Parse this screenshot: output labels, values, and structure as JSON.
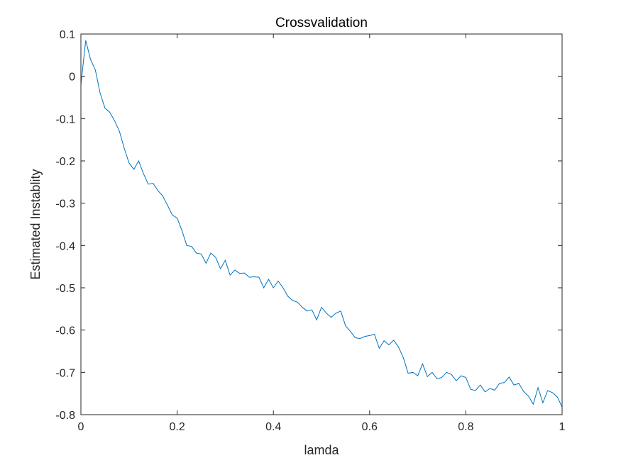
{
  "chart_data": {
    "type": "line",
    "title": "Crossvalidation",
    "xlabel": "lamda",
    "ylabel": "Estimated Instablity",
    "xlim": [
      0,
      1
    ],
    "ylim": [
      -0.8,
      0.1
    ],
    "grid": false,
    "box": true,
    "xticks": [
      0,
      0.2,
      0.4,
      0.6,
      0.8,
      1
    ],
    "xtick_labels": [
      "0",
      "0.2",
      "0.4",
      "0.6",
      "0.8",
      "1"
    ],
    "yticks": [
      0.1,
      0,
      -0.1,
      -0.2,
      -0.3,
      -0.4,
      -0.5,
      -0.6,
      -0.7,
      -0.8
    ],
    "ytick_labels": [
      "0.1",
      "0",
      "-0.1",
      "-0.2",
      "-0.3",
      "-0.4",
      "-0.5",
      "-0.6",
      "-0.7",
      "-0.8"
    ],
    "series": [
      {
        "color": "#0072BD",
        "x": [
          0,
          0.01,
          0.02,
          0.03,
          0.04,
          0.05,
          0.06,
          0.07,
          0.08,
          0.09,
          0.1,
          0.11,
          0.12,
          0.13,
          0.14,
          0.15,
          0.16,
          0.17,
          0.18,
          0.19,
          0.2,
          0.21,
          0.22,
          0.23,
          0.24,
          0.25,
          0.26,
          0.27,
          0.28,
          0.29,
          0.3,
          0.31,
          0.32,
          0.33,
          0.34,
          0.35,
          0.36,
          0.37,
          0.38,
          0.39,
          0.4,
          0.41,
          0.42,
          0.43,
          0.44,
          0.45,
          0.46,
          0.47,
          0.48,
          0.49,
          0.5,
          0.51,
          0.52,
          0.53,
          0.54,
          0.55,
          0.56,
          0.57,
          0.58,
          0.59,
          0.6,
          0.61,
          0.62,
          0.63,
          0.64,
          0.65,
          0.66,
          0.67,
          0.68,
          0.69,
          0.7,
          0.71,
          0.72,
          0.73,
          0.74,
          0.75,
          0.76,
          0.77,
          0.78,
          0.79,
          0.8,
          0.81,
          0.82,
          0.83,
          0.84,
          0.85,
          0.86,
          0.87,
          0.88,
          0.89,
          0.9,
          0.91,
          0.92,
          0.93,
          0.94,
          0.95,
          0.96,
          0.97,
          0.98,
          0.99,
          1
        ],
        "y": [
          -0.02,
          0.085,
          0.04,
          0.015,
          -0.04,
          -0.075,
          -0.085,
          -0.105,
          -0.13,
          -0.17,
          -0.205,
          -0.22,
          -0.2,
          -0.23,
          -0.255,
          -0.253,
          -0.27,
          -0.283,
          -0.305,
          -0.328,
          -0.335,
          -0.365,
          -0.4,
          -0.402,
          -0.418,
          -0.42,
          -0.442,
          -0.418,
          -0.428,
          -0.455,
          -0.435,
          -0.47,
          -0.458,
          -0.466,
          -0.465,
          -0.475,
          -0.474,
          -0.475,
          -0.5,
          -0.48,
          -0.5,
          -0.484,
          -0.5,
          -0.52,
          -0.53,
          -0.534,
          -0.546,
          -0.555,
          -0.552,
          -0.576,
          -0.546,
          -0.56,
          -0.57,
          -0.56,
          -0.555,
          -0.59,
          -0.603,
          -0.618,
          -0.62,
          -0.615,
          -0.613,
          -0.61,
          -0.643,
          -0.625,
          -0.635,
          -0.624,
          -0.64,
          -0.665,
          -0.702,
          -0.7,
          -0.708,
          -0.68,
          -0.71,
          -0.7,
          -0.715,
          -0.712,
          -0.7,
          -0.705,
          -0.72,
          -0.708,
          -0.712,
          -0.74,
          -0.743,
          -0.73,
          -0.746,
          -0.738,
          -0.742,
          -0.726,
          -0.724,
          -0.711,
          -0.73,
          -0.726,
          -0.745,
          -0.756,
          -0.775,
          -0.736,
          -0.772,
          -0.743,
          -0.748,
          -0.758,
          -0.782
        ]
      }
    ]
  }
}
